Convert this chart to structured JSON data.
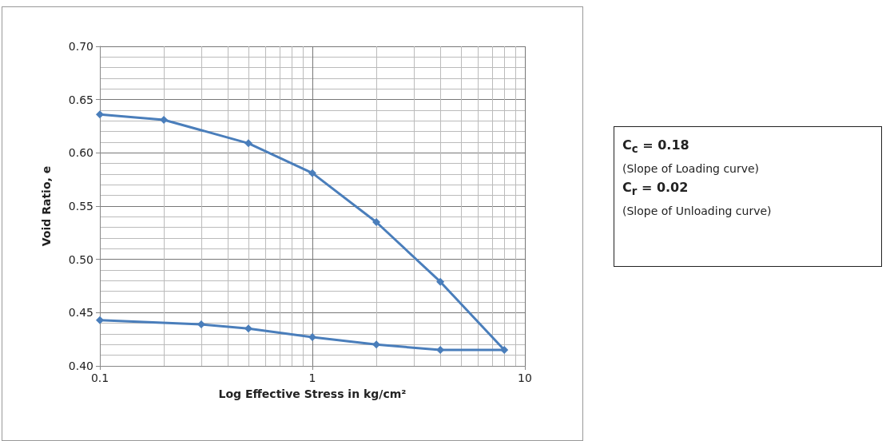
{
  "chart_data": {
    "type": "line",
    "xlabel": "Log Effective Stress in kg/cm²",
    "ylabel": "Void Ratio, e",
    "log": "x",
    "xlim": [
      0.1,
      10
    ],
    "xticks": [
      0.1,
      1,
      10
    ],
    "ylim": [
      0.4,
      0.7
    ],
    "yticks": [
      {
        "value": 0.4,
        "label": "0.40"
      },
      0.45,
      {
        "value": 0.5,
        "label": "0.50"
      },
      0.55,
      {
        "value": 0.6,
        "label": "0.60"
      },
      0.65,
      {
        "value": 0.7,
        "label": "0.70"
      }
    ],
    "grid": true,
    "marker": "diamond",
    "line_style": "solid",
    "series": [
      {
        "color": "#4a7ebb",
        "x": [
          0.1,
          0.2,
          0.5,
          1,
          2,
          4,
          8,
          4,
          2,
          1,
          0.5,
          0.3,
          0.1
        ],
        "values": [
          0.636,
          0.631,
          0.609,
          0.581,
          0.535,
          0.479,
          0.415,
          0.415,
          0.42,
          0.427,
          0.435,
          0.439,
          0.443
        ]
      }
    ],
    "annotations": [
      "C$_{c}$ = 0.18",
      "(Slope of Loading curve)",
      "C$_{r}$ = 0.02",
      "(Slope of Unloading curve)"
    ]
  }
}
